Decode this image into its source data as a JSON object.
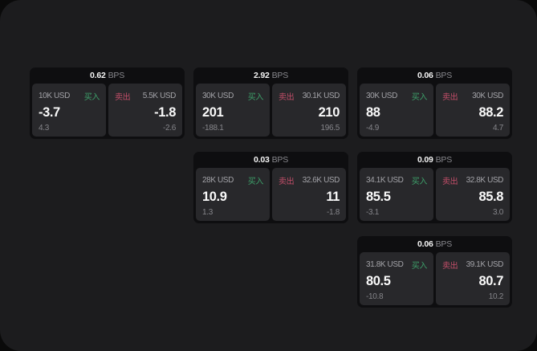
{
  "colors": {
    "background": "#1c1c1e",
    "card_background": "#0e0e10",
    "panel_background": "#28282b",
    "buy_green": "#3da06a",
    "sell_red": "#c24e69"
  },
  "cards": [
    {
      "bps": "0.62",
      "unit": "BPS",
      "buy": {
        "amount": "10K USD",
        "label": "买入",
        "price": "-3.7",
        "delta": "4.3"
      },
      "sell": {
        "label": "卖出",
        "amount": "5.5K USD",
        "price": "-1.8",
        "delta": "-2.6"
      }
    },
    {
      "bps": "2.92",
      "unit": "BPS",
      "buy": {
        "amount": "30K USD",
        "label": "买入",
        "price": "201",
        "delta": "-188.1"
      },
      "sell": {
        "label": "卖出",
        "amount": "30.1K USD",
        "price": "210",
        "delta": "196.5"
      }
    },
    {
      "bps": "0.06",
      "unit": "BPS",
      "buy": {
        "amount": "30K USD",
        "label": "买入",
        "price": "88",
        "delta": "-4.9"
      },
      "sell": {
        "label": "卖出",
        "amount": "30K USD",
        "price": "88.2",
        "delta": "4.7"
      }
    },
    {
      "bps": "0.03",
      "unit": "BPS",
      "buy": {
        "amount": "28K USD",
        "label": "买入",
        "price": "10.9",
        "delta": "1.3"
      },
      "sell": {
        "label": "卖出",
        "amount": "32.6K USD",
        "price": "11",
        "delta": "-1.8"
      }
    },
    {
      "bps": "0.09",
      "unit": "BPS",
      "buy": {
        "amount": "34.1K USD",
        "label": "买入",
        "price": "85.5",
        "delta": "-3.1"
      },
      "sell": {
        "label": "卖出",
        "amount": "32.8K USD",
        "price": "85.8",
        "delta": "3.0"
      }
    },
    {
      "bps": "0.06",
      "unit": "BPS",
      "buy": {
        "amount": "31.8K USD",
        "label": "买入",
        "price": "80.5",
        "delta": "-10.8"
      },
      "sell": {
        "label": "卖出",
        "amount": "39.1K USD",
        "price": "80.7",
        "delta": "10.2"
      }
    }
  ]
}
